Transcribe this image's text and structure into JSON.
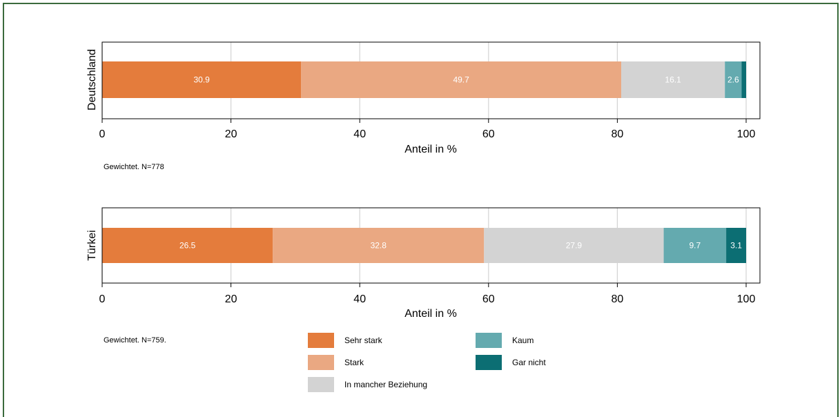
{
  "colors": {
    "frame": "#3a6b3c",
    "gridline": "#d3d3d3",
    "axis": "#000000"
  },
  "legend": [
    {
      "label": "Sehr stark",
      "color": "#e47c3c"
    },
    {
      "label": "Stark",
      "color": "#eaa882"
    },
    {
      "label": "In mancher Beziehung",
      "color": "#d3d3d3"
    },
    {
      "label": "Kaum",
      "color": "#64aaaf"
    },
    {
      "label": "Gar nicht",
      "color": "#0c6e73"
    }
  ],
  "chart_data": [
    {
      "type": "bar",
      "orientation": "horizontal",
      "stacked": true,
      "categories": [
        "Deutschland"
      ],
      "series": [
        {
          "name": "Sehr stark",
          "values": [
            30.9
          ],
          "label": "30.9"
        },
        {
          "name": "Stark",
          "values": [
            49.7
          ],
          "label": "49.7"
        },
        {
          "name": "In mancher Beziehung",
          "values": [
            16.1
          ],
          "label": "16.1"
        },
        {
          "name": "Kaum",
          "values": [
            2.6
          ],
          "label": "2.6"
        },
        {
          "name": "Gar nicht",
          "values": [
            0.7
          ],
          "label": ""
        }
      ],
      "xlabel": "Anteil in %",
      "ylabel": "Deutschland",
      "xlim": [
        0,
        100
      ],
      "xticks": [
        "0",
        "20",
        "40",
        "60",
        "80",
        "100"
      ],
      "grid": true,
      "note": "Gewichtet. N=778"
    },
    {
      "type": "bar",
      "orientation": "horizontal",
      "stacked": true,
      "categories": [
        "Türkei"
      ],
      "series": [
        {
          "name": "Sehr stark",
          "values": [
            26.5
          ],
          "label": "26.5"
        },
        {
          "name": "Stark",
          "values": [
            32.8
          ],
          "label": "32.8"
        },
        {
          "name": "In mancher Beziehung",
          "values": [
            27.9
          ],
          "label": "27.9"
        },
        {
          "name": "Kaum",
          "values": [
            9.7
          ],
          "label": "9.7"
        },
        {
          "name": "Gar nicht",
          "values": [
            3.1
          ],
          "label": "3.1"
        }
      ],
      "xlabel": "Anteil in %",
      "ylabel": "Türkei",
      "xlim": [
        0,
        100
      ],
      "xticks": [
        "0",
        "20",
        "40",
        "60",
        "80",
        "100"
      ],
      "grid": true,
      "note": "Gewichtet. N=759."
    }
  ]
}
